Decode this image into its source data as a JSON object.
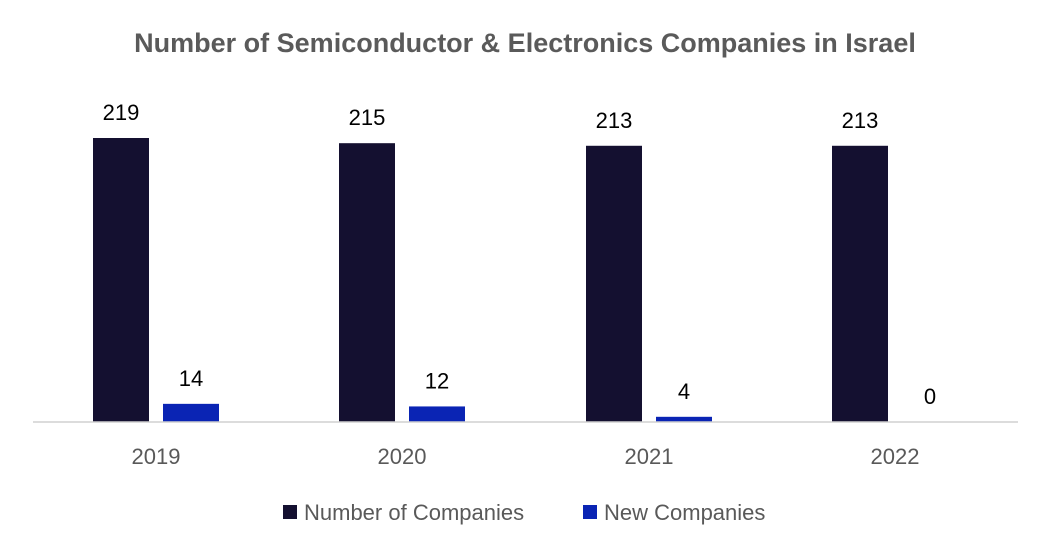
{
  "chart_data": {
    "type": "bar",
    "title": "Number of Semiconductor & Electronics Companies in Israel",
    "categories": [
      "2019",
      "2020",
      "2021",
      "2022"
    ],
    "series": [
      {
        "name": "Number of Companies",
        "values": [
          219,
          215,
          213,
          213
        ],
        "color": "#141030"
      },
      {
        "name": "New Companies",
        "values": [
          14,
          12,
          4,
          0
        ],
        "color": "#0a24b4"
      }
    ],
    "ylim": [
      0,
      219
    ],
    "grid": false,
    "legend_position": "bottom"
  }
}
